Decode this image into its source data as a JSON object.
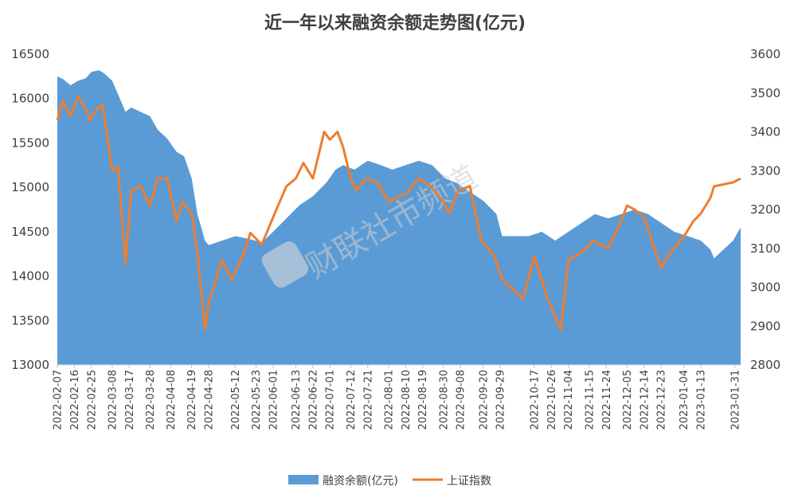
{
  "chart_data": {
    "type": "area",
    "title": "近一年以来融资余额走势图(亿元)",
    "watermark": "财联社市频道",
    "x_start": "2022-02-07",
    "x_end": "2023-02-03",
    "x_tick_labels": [
      "2022-02-07",
      "2022-02-16",
      "2022-02-25",
      "2022-03-08",
      "2022-03-17",
      "2022-03-28",
      "2022-04-08",
      "2022-04-19",
      "2022-04-28",
      "2022-05-12",
      "2022-05-23",
      "2022-06-01",
      "2022-06-13",
      "2022-06-22",
      "2022-07-01",
      "2022-07-12",
      "2022-07-21",
      "2022-08-01",
      "2022-08-10",
      "2022-08-19",
      "2022-08-30",
      "2022-09-08",
      "2022-09-20",
      "2022-09-29",
      "2022-10-17",
      "2022-10-26",
      "2022-11-04",
      "2022-11-15",
      "2022-11-24",
      "2022-12-05",
      "2022-12-14",
      "2022-12-23",
      "2023-01-04",
      "2023-01-13",
      "2023-01-31"
    ],
    "y_left": {
      "min": 13000,
      "max": 16500,
      "ticks": [
        13000,
        13500,
        14000,
        14500,
        15000,
        15500,
        16000,
        16500
      ]
    },
    "y_right": {
      "min": 2800,
      "max": 3600,
      "ticks": [
        2800,
        2900,
        3000,
        3100,
        3200,
        3300,
        3400,
        3500,
        3600
      ]
    },
    "legend_position": "bottom",
    "series": [
      {
        "name": "融资余额(亿元)",
        "kind": "area",
        "axis": "left",
        "color": "#5b9bd5",
        "points": [
          [
            "2022-02-07",
            16250
          ],
          [
            "2022-02-10",
            16220
          ],
          [
            "2022-02-14",
            16150
          ],
          [
            "2022-02-18",
            16200
          ],
          [
            "2022-02-22",
            16230
          ],
          [
            "2022-02-25",
            16300
          ],
          [
            "2022-03-01",
            16320
          ],
          [
            "2022-03-04",
            16280
          ],
          [
            "2022-03-08",
            16200
          ],
          [
            "2022-03-11",
            16050
          ],
          [
            "2022-03-15",
            15850
          ],
          [
            "2022-03-18",
            15900
          ],
          [
            "2022-03-23",
            15850
          ],
          [
            "2022-03-28",
            15800
          ],
          [
            "2022-04-01",
            15650
          ],
          [
            "2022-04-06",
            15550
          ],
          [
            "2022-04-11",
            15400
          ],
          [
            "2022-04-15",
            15350
          ],
          [
            "2022-04-19",
            15100
          ],
          [
            "2022-04-22",
            14700
          ],
          [
            "2022-04-26",
            14400
          ],
          [
            "2022-04-28",
            14350
          ],
          [
            "2022-05-05",
            14400
          ],
          [
            "2022-05-12",
            14450
          ],
          [
            "2022-05-19",
            14420
          ],
          [
            "2022-05-26",
            14380
          ],
          [
            "2022-06-01",
            14500
          ],
          [
            "2022-06-08",
            14650
          ],
          [
            "2022-06-15",
            14800
          ],
          [
            "2022-06-22",
            14900
          ],
          [
            "2022-06-29",
            15050
          ],
          [
            "2022-07-04",
            15200
          ],
          [
            "2022-07-08",
            15250
          ],
          [
            "2022-07-14",
            15200
          ],
          [
            "2022-07-21",
            15300
          ],
          [
            "2022-07-28",
            15250
          ],
          [
            "2022-08-03",
            15200
          ],
          [
            "2022-08-10",
            15250
          ],
          [
            "2022-08-17",
            15300
          ],
          [
            "2022-08-24",
            15250
          ],
          [
            "2022-08-31",
            15100
          ],
          [
            "2022-09-06",
            15050
          ],
          [
            "2022-09-13",
            14950
          ],
          [
            "2022-09-20",
            14850
          ],
          [
            "2022-09-27",
            14700
          ],
          [
            "2022-09-30",
            14450
          ],
          [
            "2022-10-14",
            14450
          ],
          [
            "2022-10-21",
            14500
          ],
          [
            "2022-10-28",
            14400
          ],
          [
            "2022-11-04",
            14500
          ],
          [
            "2022-11-11",
            14600
          ],
          [
            "2022-11-18",
            14700
          ],
          [
            "2022-11-25",
            14650
          ],
          [
            "2022-12-02",
            14700
          ],
          [
            "2022-12-09",
            14750
          ],
          [
            "2022-12-16",
            14700
          ],
          [
            "2022-12-23",
            14600
          ],
          [
            "2022-12-30",
            14500
          ],
          [
            "2023-01-06",
            14450
          ],
          [
            "2023-01-13",
            14400
          ],
          [
            "2023-01-18",
            14300
          ],
          [
            "2023-01-20",
            14200
          ],
          [
            "2023-01-30",
            14400
          ],
          [
            "2023-02-03",
            14550
          ]
        ]
      },
      {
        "name": "上证指数",
        "kind": "line",
        "axis": "right",
        "color": "#ed7d31",
        "points": [
          [
            "2022-02-07",
            3430
          ],
          [
            "2022-02-10",
            3480
          ],
          [
            "2022-02-14",
            3440
          ],
          [
            "2022-02-18",
            3490
          ],
          [
            "2022-02-22",
            3460
          ],
          [
            "2022-02-24",
            3430
          ],
          [
            "2022-02-28",
            3460
          ],
          [
            "2022-03-03",
            3470
          ],
          [
            "2022-03-08",
            3300
          ],
          [
            "2022-03-11",
            3310
          ],
          [
            "2022-03-15",
            3060
          ],
          [
            "2022-03-18",
            3250
          ],
          [
            "2022-03-23",
            3260
          ],
          [
            "2022-03-28",
            3210
          ],
          [
            "2022-04-01",
            3280
          ],
          [
            "2022-04-06",
            3280
          ],
          [
            "2022-04-11",
            3170
          ],
          [
            "2022-04-14",
            3220
          ],
          [
            "2022-04-19",
            3190
          ],
          [
            "2022-04-22",
            3090
          ],
          [
            "2022-04-26",
            2890
          ],
          [
            "2022-04-28",
            2960
          ],
          [
            "2022-05-05",
            3070
          ],
          [
            "2022-05-10",
            3020
          ],
          [
            "2022-05-16",
            3080
          ],
          [
            "2022-05-20",
            3140
          ],
          [
            "2022-05-26",
            3110
          ],
          [
            "2022-06-01",
            3180
          ],
          [
            "2022-06-08",
            3260
          ],
          [
            "2022-06-13",
            3280
          ],
          [
            "2022-06-17",
            3320
          ],
          [
            "2022-06-22",
            3280
          ],
          [
            "2022-06-28",
            3400
          ],
          [
            "2022-07-01",
            3380
          ],
          [
            "2022-07-05",
            3400
          ],
          [
            "2022-07-08",
            3360
          ],
          [
            "2022-07-12",
            3280
          ],
          [
            "2022-07-15",
            3250
          ],
          [
            "2022-07-20",
            3280
          ],
          [
            "2022-07-26",
            3270
          ],
          [
            "2022-08-01",
            3220
          ],
          [
            "2022-08-05",
            3230
          ],
          [
            "2022-08-10",
            3240
          ],
          [
            "2022-08-17",
            3280
          ],
          [
            "2022-08-23",
            3260
          ],
          [
            "2022-08-30",
            3220
          ],
          [
            "2022-09-02",
            3190
          ],
          [
            "2022-09-07",
            3250
          ],
          [
            "2022-09-13",
            3260
          ],
          [
            "2022-09-19",
            3120
          ],
          [
            "2022-09-26",
            3080
          ],
          [
            "2022-09-30",
            3020
          ],
          [
            "2022-10-11",
            2970
          ],
          [
            "2022-10-17",
            3080
          ],
          [
            "2022-10-24",
            2970
          ],
          [
            "2022-10-31",
            2890
          ],
          [
            "2022-11-04",
            3070
          ],
          [
            "2022-11-11",
            3090
          ],
          [
            "2022-11-17",
            3120
          ],
          [
            "2022-11-25",
            3100
          ],
          [
            "2022-12-01",
            3160
          ],
          [
            "2022-12-05",
            3210
          ],
          [
            "2022-12-09",
            3200
          ],
          [
            "2022-12-14",
            3180
          ],
          [
            "2022-12-20",
            3090
          ],
          [
            "2022-12-23",
            3050
          ],
          [
            "2022-12-28",
            3090
          ],
          [
            "2023-01-04",
            3130
          ],
          [
            "2023-01-09",
            3170
          ],
          [
            "2023-01-13",
            3190
          ],
          [
            "2023-01-18",
            3230
          ],
          [
            "2023-01-20",
            3260
          ],
          [
            "2023-01-30",
            3270
          ],
          [
            "2023-02-03",
            3280
          ]
        ]
      }
    ]
  }
}
